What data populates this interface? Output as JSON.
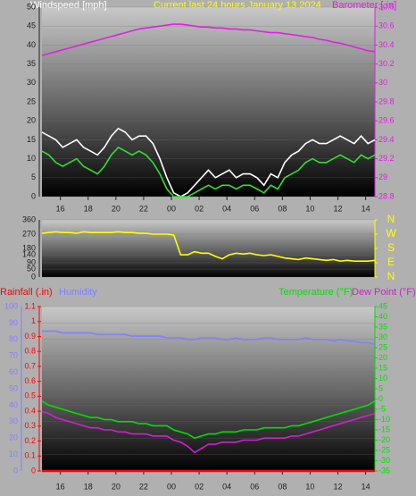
{
  "chart_data": [
    {
      "type": "line",
      "title": "Current last 24 hours January 13 2024",
      "ylabel": "Windspeed [mph]",
      "x": [
        0,
        0.5,
        1,
        1.5,
        2,
        2.5,
        3,
        3.5,
        4,
        4.5,
        5,
        5.5,
        6,
        6.5,
        7,
        7.5,
        8,
        8.5,
        9,
        9.5,
        10,
        10.5,
        11,
        11.5,
        12,
        12.5,
        13,
        13.5,
        14,
        14.5,
        15,
        15.5,
        16,
        16.5,
        17,
        17.5,
        18,
        18.5,
        19,
        19.5,
        20,
        20.5,
        21,
        21.5,
        22,
        22.5,
        23,
        23.5,
        24
      ],
      "xlim": [
        0,
        24
      ],
      "xticks": [
        {
          "value": 1.33,
          "label": "16"
        },
        {
          "value": 3.33,
          "label": "18"
        },
        {
          "value": 5.33,
          "label": "20"
        },
        {
          "value": 7.33,
          "label": "22"
        },
        {
          "value": 9.33,
          "label": "00"
        },
        {
          "value": 11.33,
          "label": "02"
        },
        {
          "value": 13.33,
          "label": "04"
        },
        {
          "value": 15.33,
          "label": "06"
        },
        {
          "value": 17.33,
          "label": "08"
        },
        {
          "value": 19.33,
          "label": "10"
        },
        {
          "value": 21.33,
          "label": "12"
        },
        {
          "value": 23.33,
          "label": "14"
        }
      ],
      "ylim": [
        0,
        50
      ],
      "yticks": [
        0,
        5,
        10,
        15,
        20,
        25,
        30,
        35,
        40,
        45,
        50
      ],
      "y2lim": [
        28.8,
        30.8
      ],
      "y2ticks": [
        28.8,
        29,
        29.2,
        29.4,
        29.6,
        29.8,
        30,
        30.2,
        30.4,
        30.6,
        30.8
      ],
      "series": [
        {
          "color": "#ffffff",
          "values": [
            17,
            16,
            15,
            13,
            14,
            15,
            13,
            12,
            11,
            13,
            16,
            18,
            17,
            15,
            16,
            16,
            14,
            10,
            5,
            1,
            0,
            1,
            3,
            5,
            7,
            5,
            6,
            7,
            5,
            6,
            6,
            5,
            3,
            6,
            5,
            9,
            11,
            12,
            14,
            15,
            14,
            14,
            15,
            16,
            15,
            14,
            16,
            14,
            15
          ]
        },
        {
          "color": "#30e030",
          "values": [
            12,
            11,
            9,
            8,
            9,
            10,
            8,
            7,
            6,
            8,
            11,
            13,
            12,
            11,
            12,
            11,
            9,
            6,
            2,
            0,
            0,
            0,
            1,
            2,
            3,
            2,
            3,
            3,
            2,
            3,
            3,
            2,
            1,
            3,
            2,
            5,
            6,
            7,
            9,
            10,
            9,
            9,
            10,
            11,
            10,
            9,
            11,
            10,
            11
          ]
        },
        {
          "name": "Barometer [.in]",
          "color": "#e020e0",
          "axis": "y2",
          "values": [
            30.29,
            30.31,
            30.33,
            30.35,
            30.37,
            30.39,
            30.41,
            30.43,
            30.45,
            30.47,
            30.49,
            30.51,
            30.53,
            30.55,
            30.57,
            30.58,
            30.59,
            30.6,
            30.61,
            30.62,
            30.62,
            30.61,
            30.6,
            30.59,
            30.59,
            30.58,
            30.58,
            30.57,
            30.57,
            30.56,
            30.56,
            30.55,
            30.54,
            30.53,
            30.53,
            30.52,
            30.51,
            30.5,
            30.49,
            30.48,
            30.46,
            30.45,
            30.43,
            30.42,
            30.4,
            30.38,
            30.36,
            30.34,
            30.33
          ]
        }
      ]
    },
    {
      "type": "line",
      "x": [
        0,
        0.5,
        1,
        1.5,
        2,
        2.5,
        3,
        3.5,
        4,
        4.5,
        5,
        5.5,
        6,
        6.5,
        7,
        7.5,
        8,
        8.5,
        9,
        9.5,
        10,
        10.5,
        11,
        11.5,
        12,
        12.5,
        13,
        13.5,
        14,
        14.5,
        15,
        15.5,
        16,
        16.5,
        17,
        17.5,
        18,
        18.5,
        19,
        19.5,
        20,
        20.5,
        21,
        21.5,
        22,
        22.5,
        23,
        23.5,
        24
      ],
      "xlim": [
        0,
        24
      ],
      "ylim": [
        0,
        360
      ],
      "yticks": [
        0,
        50,
        90,
        140,
        180,
        270,
        360
      ],
      "y2lim": [
        0,
        360
      ],
      "y2ticks": [
        {
          "value": 0,
          "label": "N"
        },
        {
          "value": 90,
          "label": "E"
        },
        {
          "value": 180,
          "label": "S"
        },
        {
          "value": 270,
          "label": "W"
        },
        {
          "value": 360,
          "label": "N"
        }
      ],
      "series": [
        {
          "color": "#ffff00",
          "values": [
            275,
            280,
            285,
            280,
            280,
            275,
            285,
            280,
            280,
            280,
            280,
            285,
            280,
            280,
            275,
            275,
            270,
            270,
            270,
            265,
            140,
            140,
            160,
            150,
            150,
            130,
            115,
            140,
            150,
            145,
            150,
            140,
            135,
            140,
            130,
            120,
            115,
            110,
            120,
            115,
            110,
            105,
            110,
            100,
            105,
            100,
            100,
            100,
            105
          ]
        }
      ]
    },
    {
      "type": "line",
      "x": [
        0,
        0.5,
        1,
        1.5,
        2,
        2.5,
        3,
        3.5,
        4,
        4.5,
        5,
        5.5,
        6,
        6.5,
        7,
        7.5,
        8,
        8.5,
        9,
        9.5,
        10,
        10.5,
        11,
        11.5,
        12,
        12.5,
        13,
        13.5,
        14,
        14.5,
        15,
        15.5,
        16,
        16.5,
        17,
        17.5,
        18,
        18.5,
        19,
        19.5,
        20,
        20.5,
        21,
        21.5,
        22,
        22.5,
        23,
        23.5,
        24
      ],
      "xlim": [
        0,
        24
      ],
      "xticks": [
        {
          "value": 1.33,
          "label": "16"
        },
        {
          "value": 3.33,
          "label": "18"
        },
        {
          "value": 5.33,
          "label": "20"
        },
        {
          "value": 7.33,
          "label": "22"
        },
        {
          "value": 9.33,
          "label": "00"
        },
        {
          "value": 11.33,
          "label": "02"
        },
        {
          "value": 13.33,
          "label": "04"
        },
        {
          "value": 15.33,
          "label": "06"
        },
        {
          "value": 17.33,
          "label": "08"
        },
        {
          "value": 19.33,
          "label": "10"
        },
        {
          "value": 21.33,
          "label": "12"
        },
        {
          "value": 23.33,
          "label": "14"
        }
      ],
      "ylim": [
        0,
        100
      ],
      "yticks": [
        0,
        10,
        20,
        30,
        40,
        50,
        60,
        70,
        80,
        90,
        100
      ],
      "y2lim": [
        0,
        1.1
      ],
      "y2ticks": [
        0,
        0.1,
        0.2,
        0.3,
        0.4,
        0.5,
        0.6,
        0.7,
        0.8,
        0.9,
        1,
        1.1
      ],
      "y3lim": [
        -35,
        45
      ],
      "y3ticks": [
        -35,
        -30,
        -25,
        -20,
        -15,
        -10,
        -5,
        0,
        5,
        10,
        15,
        20,
        25,
        30,
        35,
        40,
        45
      ],
      "series": [
        {
          "name": "Rainfall (.in)",
          "color": "#ff0000",
          "axis": "y2",
          "values": [
            0,
            0,
            0,
            0,
            0,
            0,
            0,
            0,
            0,
            0,
            0,
            0,
            0,
            0,
            0,
            0,
            0,
            0,
            0,
            0,
            0,
            0,
            0,
            0,
            0,
            0,
            0,
            0,
            0,
            0,
            0,
            0,
            0,
            0,
            0,
            0,
            0,
            0,
            0,
            0,
            0,
            0,
            0,
            0,
            0,
            0,
            0,
            0,
            0
          ]
        },
        {
          "name": "Humidity",
          "color": "#8080ff",
          "values": [
            85,
            85,
            85,
            84,
            84,
            84,
            84,
            84,
            83,
            83,
            83,
            83,
            83,
            82,
            82,
            82,
            82,
            82,
            81,
            81,
            81,
            80,
            80,
            81,
            81,
            81,
            80,
            80,
            81,
            80,
            80,
            80,
            81,
            81,
            80,
            80,
            80,
            80,
            81,
            80,
            80,
            80,
            79,
            80,
            79,
            79,
            78,
            78,
            77
          ]
        },
        {
          "name": "Temperature (°F)",
          "color": "#00e000",
          "axis": "y3",
          "values": [
            -1,
            -3,
            -4,
            -5,
            -6,
            -7,
            -8,
            -9,
            -9,
            -10,
            -10,
            -11,
            -11,
            -11,
            -12,
            -12,
            -13,
            -13,
            -13,
            -15,
            -16,
            -17,
            -19,
            -18,
            -17,
            -17,
            -16,
            -16,
            -16,
            -15,
            -15,
            -15,
            -14,
            -14,
            -14,
            -14,
            -13,
            -13,
            -12,
            -11,
            -10,
            -9,
            -8,
            -7,
            -6,
            -5,
            -4,
            -3,
            -1
          ]
        },
        {
          "name": "Dew Point (°F)",
          "color": "#d020d0",
          "axis": "y3",
          "values": [
            -6,
            -7,
            -9,
            -10,
            -11,
            -12,
            -13,
            -14,
            -14,
            -15,
            -15,
            -16,
            -16,
            -17,
            -17,
            -17,
            -18,
            -18,
            -18,
            -20,
            -21,
            -23,
            -26,
            -24,
            -22,
            -22,
            -21,
            -21,
            -21,
            -20,
            -20,
            -20,
            -19,
            -19,
            -19,
            -19,
            -18,
            -18,
            -17,
            -16,
            -15,
            -14,
            -13,
            -12,
            -11,
            -10,
            -9,
            -8,
            -7
          ]
        }
      ]
    }
  ]
}
